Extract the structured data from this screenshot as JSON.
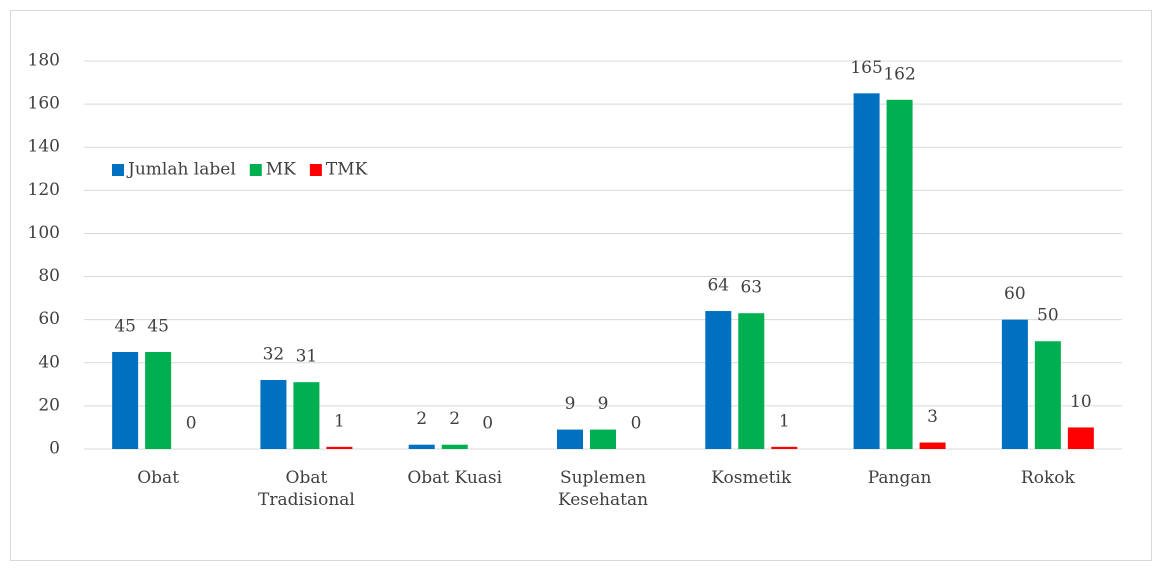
{
  "chart_data": {
    "type": "bar",
    "categories": [
      "Obat",
      "Obat Tradisional",
      "Obat Kuasi",
      "Suplemen Kesehatan",
      "Kosmetik",
      "Pangan",
      "Rokok"
    ],
    "series": [
      {
        "name": "Jumlah label",
        "color": "#0070c0",
        "values": [
          45,
          32,
          2,
          9,
          64,
          165,
          60
        ]
      },
      {
        "name": "MK",
        "color": "#00b050",
        "values": [
          45,
          31,
          2,
          9,
          63,
          162,
          50
        ]
      },
      {
        "name": "TMK",
        "color": "#ff0000",
        "values": [
          0,
          1,
          0,
          0,
          1,
          3,
          10
        ]
      }
    ],
    "ylim": [
      0,
      180
    ],
    "yticks": [
      0,
      20,
      40,
      60,
      80,
      100,
      120,
      140,
      160,
      180
    ],
    "grid": true,
    "legend": "top-left"
  }
}
